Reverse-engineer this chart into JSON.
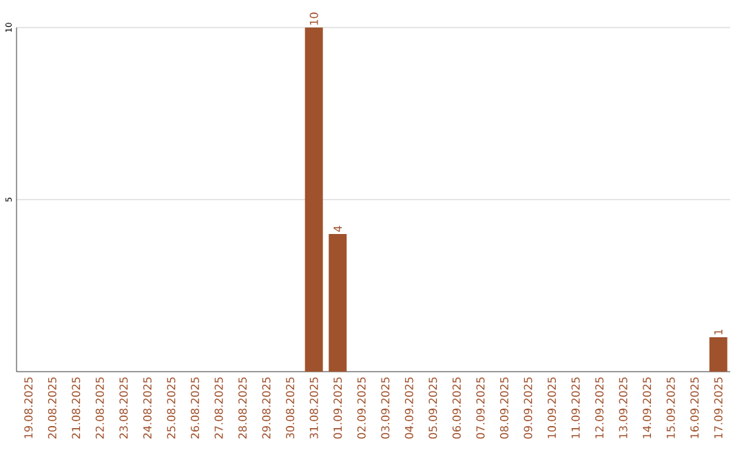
{
  "chart_data": {
    "type": "bar",
    "categories": [
      "19.08.2025",
      "20.08.2025",
      "21.08.2025",
      "22.08.2025",
      "23.08.2025",
      "24.08.2025",
      "25.08.2025",
      "26.08.2025",
      "27.08.2025",
      "28.08.2025",
      "29.08.2025",
      "30.08.2025",
      "31.08.2025",
      "01.09.2025",
      "02.09.2025",
      "03.09.2025",
      "04.09.2025",
      "05.09.2025",
      "06.09.2025",
      "07.09.2025",
      "08.09.2025",
      "09.09.2025",
      "10.09.2025",
      "11.09.2025",
      "12.09.2025",
      "13.09.2025",
      "14.09.2025",
      "15.09.2025",
      "16.09.2025",
      "17.09.2025"
    ],
    "values": [
      0,
      0,
      0,
      0,
      0,
      0,
      0,
      0,
      0,
      0,
      0,
      0,
      10,
      4,
      0,
      0,
      0,
      0,
      0,
      0,
      0,
      0,
      0,
      0,
      0,
      0,
      0,
      0,
      0,
      1
    ],
    "value_labels": [
      null,
      null,
      null,
      null,
      null,
      null,
      null,
      null,
      null,
      null,
      null,
      null,
      "10",
      "4",
      null,
      null,
      null,
      null,
      null,
      null,
      null,
      null,
      null,
      null,
      null,
      null,
      null,
      null,
      null,
      "1"
    ],
    "color": "#a0522d",
    "ylim": [
      0,
      10
    ],
    "yticks": [
      5,
      10
    ],
    "grid": "y"
  }
}
